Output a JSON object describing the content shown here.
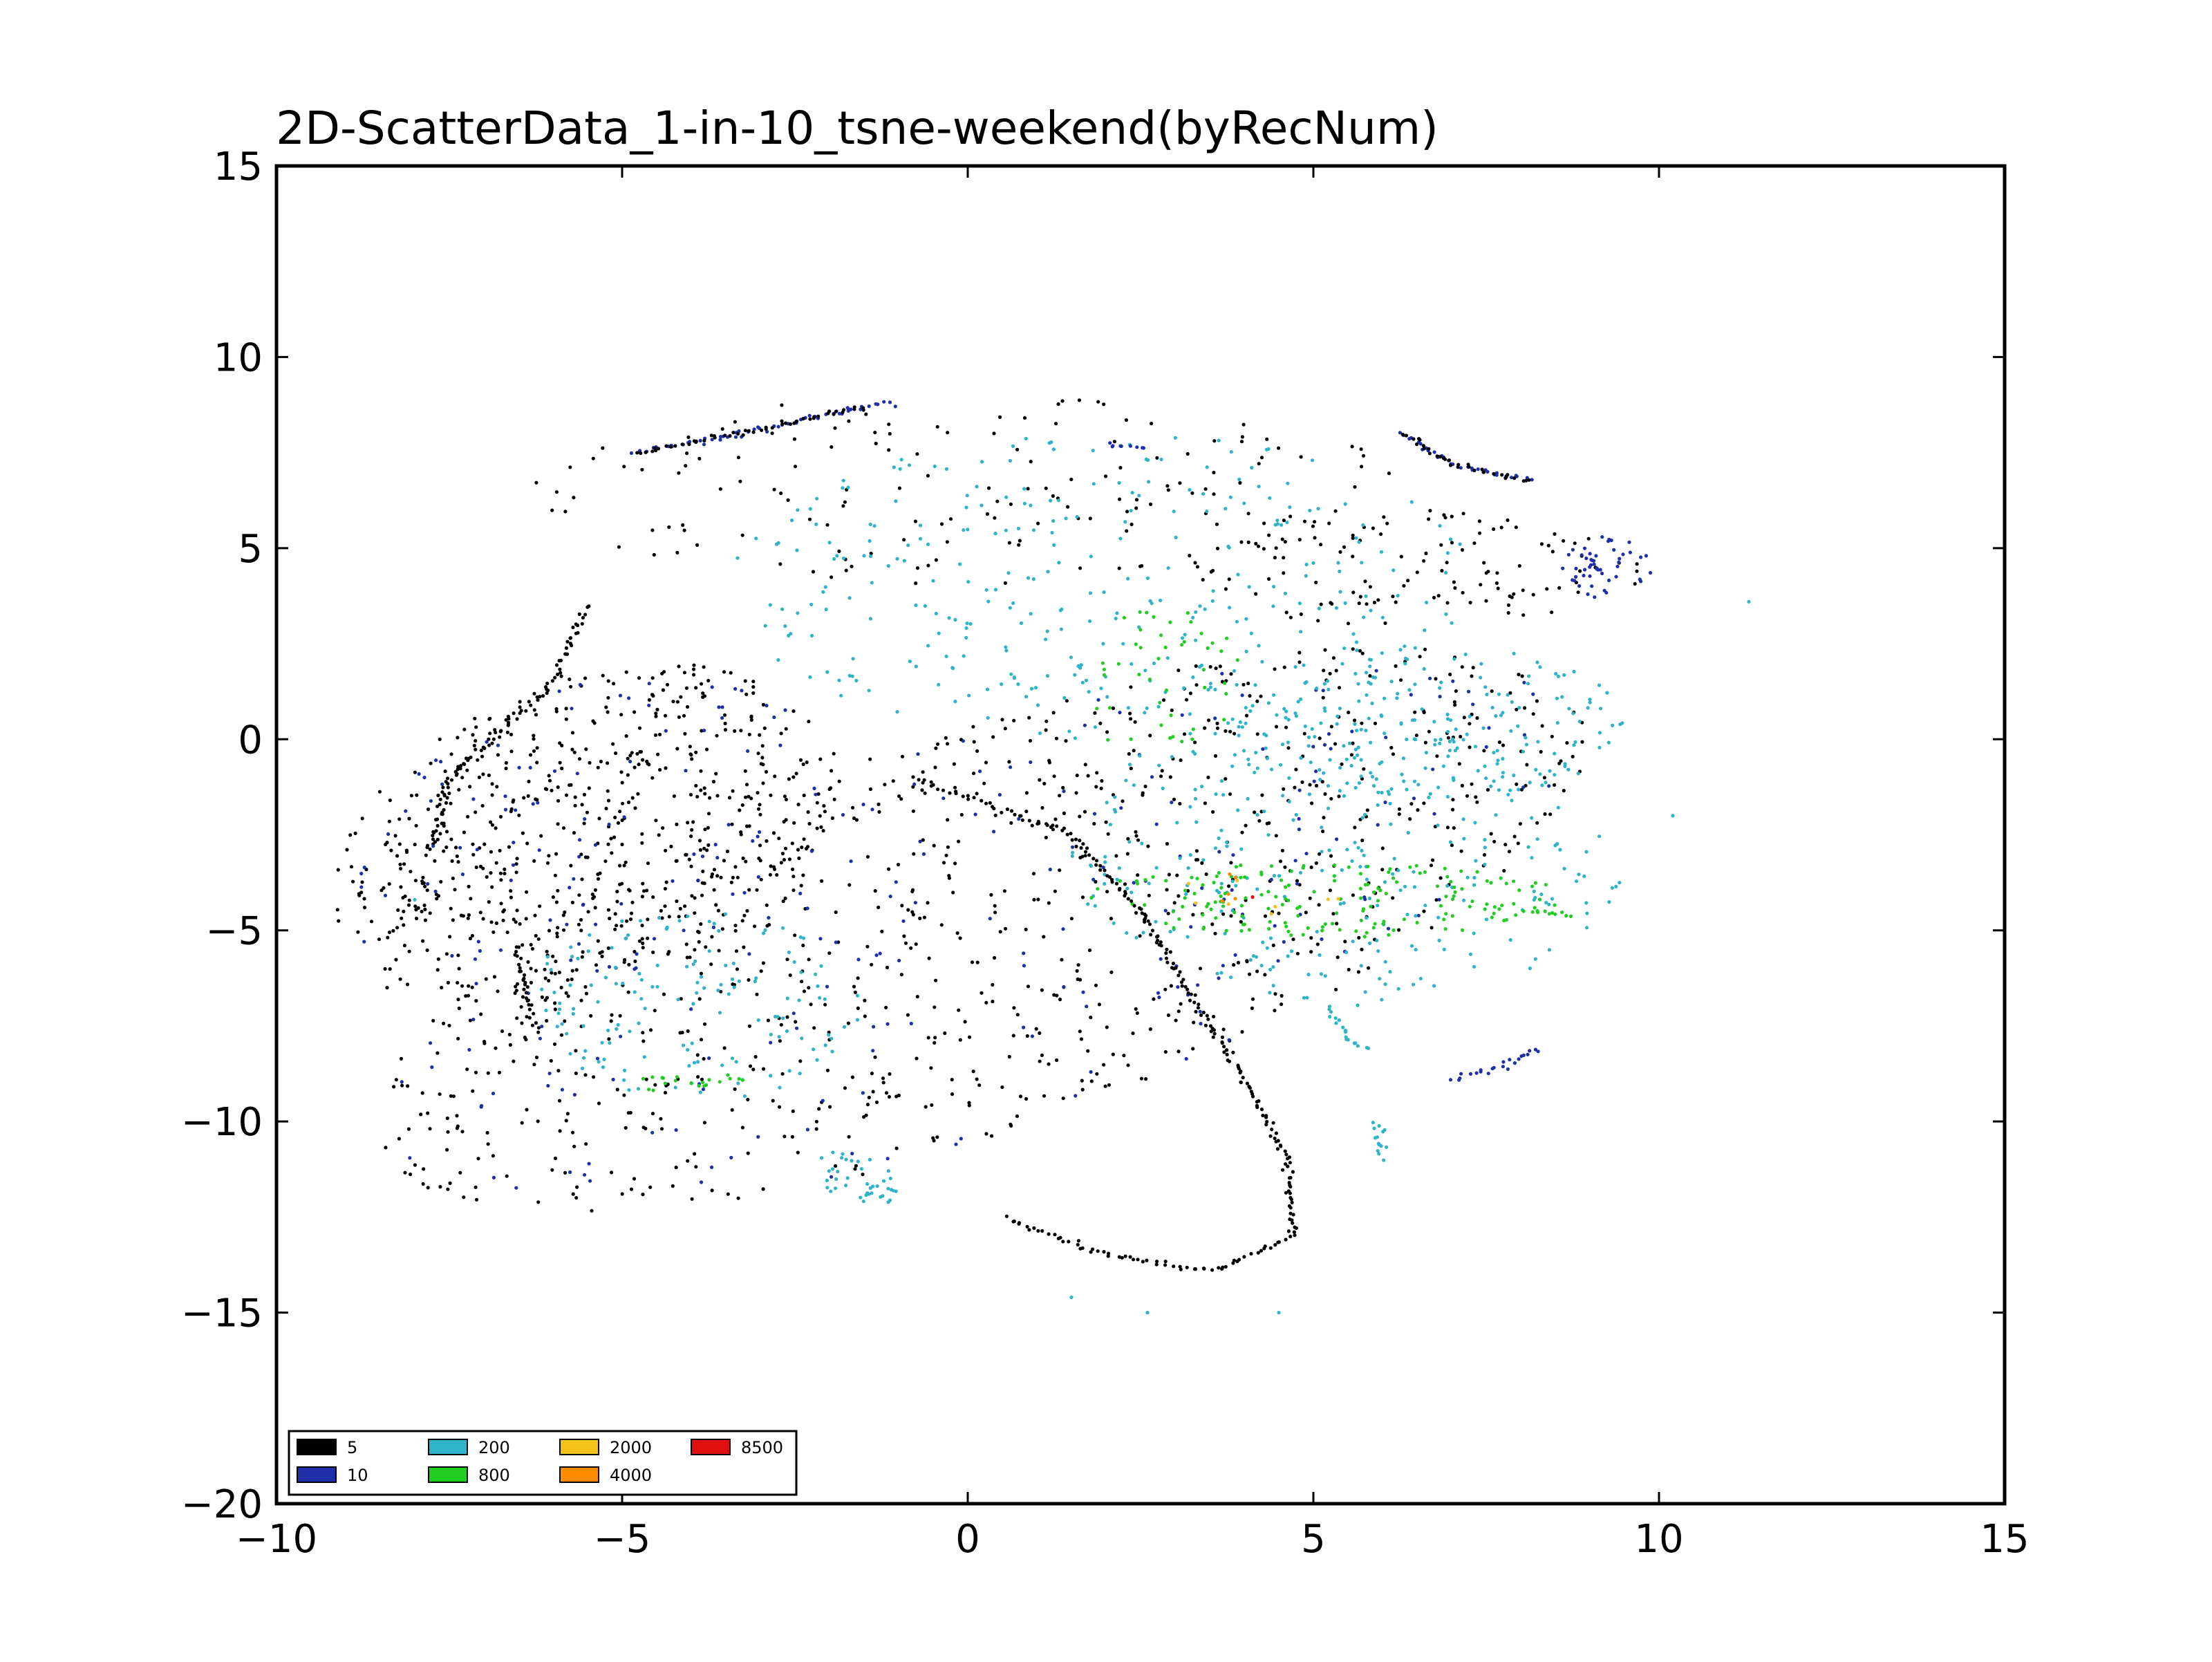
{
  "chart_data": {
    "type": "scatter",
    "title": "2D-ScatterData_1-in-10_tsne-weekend(byRecNum)",
    "xlabel": "",
    "ylabel": "",
    "xlim": [
      -10,
      15
    ],
    "ylim": [
      -20,
      15
    ],
    "xticks": [
      -10,
      -5,
      0,
      5,
      10,
      15
    ],
    "yticks": [
      15,
      10,
      5,
      0,
      -5,
      -10,
      -15,
      -20
    ],
    "xtick_labels": [
      "−10",
      "−5",
      "0",
      "5",
      "10",
      "15"
    ],
    "ytick_labels": [
      "15",
      "10",
      "5",
      "0",
      "−5",
      "−10",
      "−15",
      "−20"
    ],
    "grid": false,
    "legend_position": "lower-left",
    "series": [
      {
        "name": "5",
        "color": "#000000"
      },
      {
        "name": "10",
        "color": "#1f2fa8"
      },
      {
        "name": "200",
        "color": "#2fb3c8"
      },
      {
        "name": "800",
        "color": "#22cc22"
      },
      {
        "name": "2000",
        "color": "#f2c21a"
      },
      {
        "name": "4000",
        "color": "#ff8c00"
      },
      {
        "name": "8500",
        "color": "#e01010"
      }
    ],
    "clusters": [
      {
        "series": "5",
        "shape": "ellipse",
        "cx": 0.2,
        "cy": -5.0,
        "rx": 4.6,
        "ry": 10.5,
        "rot": -52,
        "n": 900
      },
      {
        "series": "5",
        "shape": "ellipse",
        "cx": -5.5,
        "cy": -2.5,
        "rx": 3.2,
        "ry": 4.8,
        "rot": -30,
        "n": 650
      },
      {
        "series": "10",
        "shape": "ellipse",
        "cx": 0.2,
        "cy": -5.0,
        "rx": 4.5,
        "ry": 10.3,
        "rot": -52,
        "n": 200
      },
      {
        "series": "10",
        "shape": "ellipse",
        "cx": -5.5,
        "cy": -2.5,
        "rx": 3.0,
        "ry": 4.6,
        "rot": -30,
        "n": 90
      },
      {
        "series": "5",
        "shape": "ellipse",
        "cx": 0.0,
        "cy": 6.5,
        "rx": 6.5,
        "ry": 2.5,
        "rot": 0,
        "n": 160
      },
      {
        "series": "5",
        "shape": "ellipse",
        "cx": 6.5,
        "cy": 4.5,
        "rx": 3.3,
        "ry": 1.6,
        "rot": 0,
        "n": 120
      },
      {
        "series": "10",
        "shape": "ellipse",
        "cx": 9.2,
        "cy": 4.5,
        "rx": 0.7,
        "ry": 0.8,
        "rot": 0,
        "n": 50
      },
      {
        "series": "200",
        "shape": "ellipse",
        "cx": 2.0,
        "cy": 4.0,
        "rx": 5.5,
        "ry": 4.0,
        "rot": 0,
        "n": 320
      },
      {
        "series": "200",
        "shape": "ellipse",
        "cx": 5.5,
        "cy": -3.0,
        "rx": 4.0,
        "ry": 4.0,
        "rot": 0,
        "n": 300
      },
      {
        "series": "200",
        "shape": "ellipse",
        "cx": -4.0,
        "cy": -7.0,
        "rx": 2.5,
        "ry": 2.5,
        "rot": 0,
        "n": 140
      },
      {
        "series": "200",
        "shape": "ellipse",
        "cx": 6.5,
        "cy": 0.5,
        "rx": 3.0,
        "ry": 2.0,
        "rot": 0,
        "n": 160
      },
      {
        "series": "200",
        "shape": "ellipse",
        "cx": -1.6,
        "cy": -11.5,
        "rx": 0.5,
        "ry": 0.8,
        "rot": 30,
        "n": 40
      },
      {
        "series": "800",
        "shape": "ellipse",
        "cx": 5.2,
        "cy": -4.2,
        "rx": 3.5,
        "ry": 1.0,
        "rot": 0,
        "n": 170
      },
      {
        "series": "800",
        "shape": "ellipse",
        "cx": 2.8,
        "cy": 1.5,
        "rx": 1.2,
        "ry": 2.0,
        "rot": 0,
        "n": 45
      },
      {
        "series": "800",
        "shape": "ellipse",
        "cx": -4.0,
        "cy": -9.0,
        "rx": 0.8,
        "ry": 0.3,
        "rot": 0,
        "n": 20
      },
      {
        "series": "2000",
        "shape": "ellipse",
        "cx": 4.3,
        "cy": -4.0,
        "rx": 1.2,
        "ry": 0.6,
        "rot": 0,
        "n": 8
      },
      {
        "series": "4000",
        "shape": "ellipse",
        "cx": 3.8,
        "cy": -4.0,
        "rx": 0.6,
        "ry": 0.5,
        "rot": 0,
        "n": 5
      },
      {
        "series": "8500",
        "shape": "ellipse",
        "cx": 4.0,
        "cy": -4.1,
        "rx": 0.2,
        "ry": 0.2,
        "rot": 0,
        "n": 1
      }
    ],
    "curves": [
      {
        "series": "5",
        "points": [
          [
            -0.8,
            -1.0
          ],
          [
            1.5,
            -2.5
          ],
          [
            2.5,
            -4.5
          ],
          [
            3.5,
            -7.5
          ],
          [
            4.2,
            -9.5
          ],
          [
            4.6,
            -11.0
          ],
          [
            4.7,
            -13.0
          ],
          [
            3.6,
            -13.9
          ],
          [
            2.0,
            -13.5
          ],
          [
            0.5,
            -12.5
          ]
        ]
      },
      {
        "series": "5",
        "points": [
          [
            -5.5,
            3.5
          ],
          [
            -6.0,
            1.5
          ],
          [
            -7.5,
            -1.0
          ],
          [
            -7.8,
            -3.0
          ]
        ]
      },
      {
        "series": "5",
        "points": [
          [
            -6.5,
            -5.5
          ],
          [
            -6.4,
            -6.5
          ],
          [
            -6.3,
            -7.4
          ]
        ]
      },
      {
        "series": "10",
        "points": [
          [
            -4.8,
            7.5
          ],
          [
            -3.0,
            8.1
          ],
          [
            -1.5,
            8.7
          ],
          [
            -1.0,
            8.8
          ]
        ]
      },
      {
        "series": "5",
        "points": [
          [
            -4.8,
            7.5
          ],
          [
            -3.0,
            8.1
          ],
          [
            -1.5,
            8.7
          ]
        ]
      },
      {
        "series": "10",
        "points": [
          [
            2.0,
            7.7
          ],
          [
            2.6,
            7.6
          ]
        ]
      },
      {
        "series": "10",
        "points": [
          [
            7.0,
            -8.9
          ],
          [
            7.8,
            -8.5
          ],
          [
            8.3,
            -8.0
          ]
        ]
      },
      {
        "series": "10",
        "points": [
          [
            6.3,
            8.0
          ],
          [
            7.0,
            7.2
          ],
          [
            7.8,
            6.9
          ],
          [
            8.2,
            6.8
          ]
        ]
      },
      {
        "series": "5",
        "points": [
          [
            6.3,
            8.0
          ],
          [
            7.0,
            7.2
          ],
          [
            7.8,
            6.9
          ],
          [
            8.2,
            6.8
          ]
        ]
      },
      {
        "series": "200",
        "points": [
          [
            5.2,
            -7.0
          ],
          [
            5.5,
            -7.8
          ],
          [
            5.8,
            -8.2
          ]
        ]
      },
      {
        "series": "200",
        "points": [
          [
            5.9,
            -10.0
          ],
          [
            6.0,
            -11.0
          ]
        ]
      },
      {
        "series": "800",
        "points": [
          [
            8.2,
            -4.5
          ],
          [
            8.8,
            -4.6
          ]
        ]
      }
    ],
    "outliers": [
      {
        "series": "200",
        "x": 11.3,
        "y": 3.6
      },
      {
        "series": "200",
        "x": 10.2,
        "y": -2.0
      },
      {
        "series": "200",
        "x": 4.5,
        "y": -15.0
      },
      {
        "series": "200",
        "x": 1.5,
        "y": -14.6
      },
      {
        "series": "200",
        "x": 2.6,
        "y": -15.0
      },
      {
        "series": "5",
        "x": -8.4,
        "y": -2.7
      },
      {
        "series": "200",
        "x": -8.0,
        "y": -4.2
      },
      {
        "series": "5",
        "x": -8.4,
        "y": -6.5
      }
    ]
  }
}
